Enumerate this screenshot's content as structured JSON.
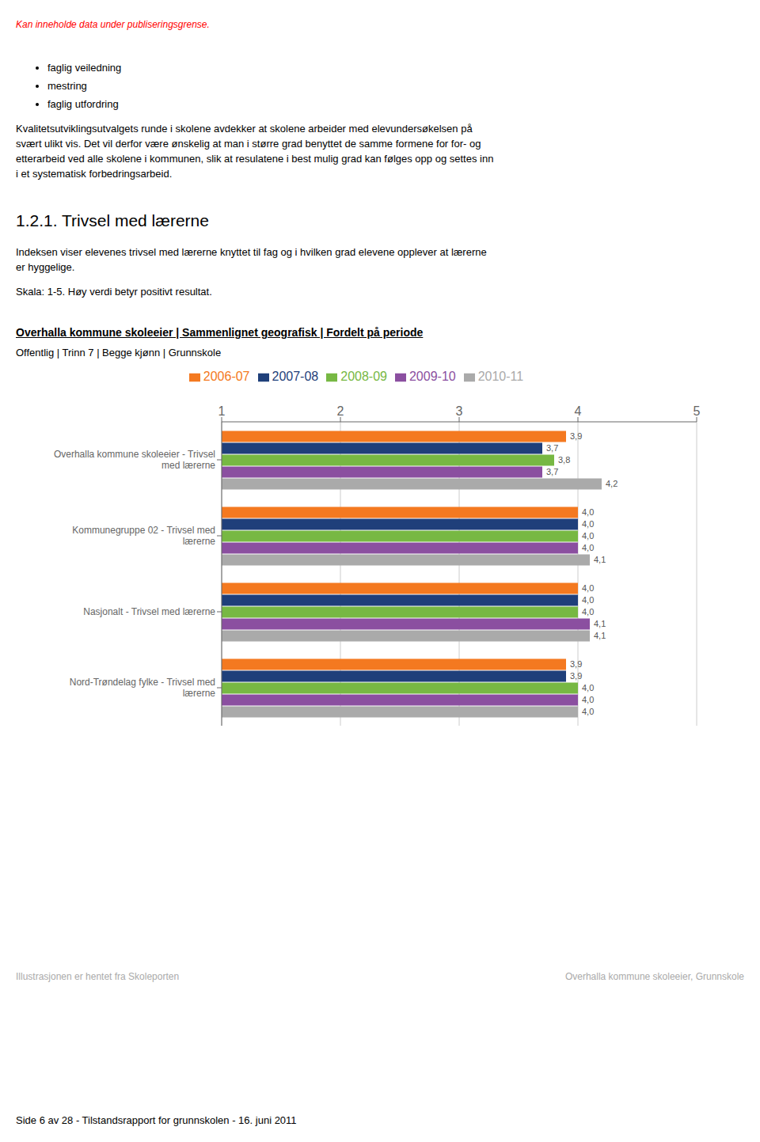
{
  "page_title_red": "Kan inneholde data under publiseringsgrense.",
  "bullet_items": [
    "faglig veiledning",
    "mestring",
    "faglig utfordring"
  ],
  "para1_lines": [
    "Kvalitetsutviklingsutvalgets runde i skolene avdekker at skolene arbeider med elevundersøkelsen på",
    "svært ulikt vis. Det vil derfor være ønskelig at man i større grad benyttet de samme formene for for- og",
    "etterarbeid ved alle skolene i kommunen, slik at resulatene i best mulig grad kan følges opp og settes inn",
    "i et systematisk forbedringsarbeid."
  ],
  "section_heading": "1.2.1.  Trivsel med lærerne",
  "sec_desc_lines": [
    "Indeksen viser elevenes trivsel med lærerne knyttet til fag og i hvilken grad elevene opplever at lærerne",
    "er hyggelige."
  ],
  "scale_text": "Skala: 1-5. Høy verdi betyr positivt resultat.",
  "chart_data": {
    "type": "bar",
    "orientation": "horizontal",
    "title": "Overhalla kommune skoleeier | Sammenlignet geografisk | Fordelt på periode",
    "subtitle": "Offentlig | Trinn 7 | Begge kjønn | Grunnskole",
    "categories": [
      "Overhalla kommune skoleeier - Trivsel\nmed lærerne",
      "Kommunegruppe 02 - Trivsel med\nlærerne",
      "Nasjonalt - Trivsel med lærerne",
      "Nord-Trøndelag fylke - Trivsel med\nlærerne"
    ],
    "series": [
      {
        "name": "2006-07",
        "color": "#f47920",
        "values": [
          3.9,
          4.0,
          4.0,
          3.9
        ],
        "value_labels": [
          "3,9",
          "4,0",
          "4,0",
          "3,9"
        ]
      },
      {
        "name": "2007-08",
        "color": "#1f3f7a",
        "values": [
          3.7,
          4.0,
          4.0,
          3.9
        ],
        "value_labels": [
          "3,7",
          "4,0",
          "4,0",
          "3,9"
        ]
      },
      {
        "name": "2008-09",
        "color": "#77b843",
        "values": [
          3.8,
          4.0,
          4.0,
          4.0
        ],
        "value_labels": [
          "3,8",
          "4,0",
          "4,0",
          "4,0"
        ]
      },
      {
        "name": "2009-10",
        "color": "#8b4fa0",
        "values": [
          3.7,
          4.0,
          4.1,
          4.0
        ],
        "value_labels": [
          "3,7",
          "4,0",
          "4,1",
          "4,0"
        ]
      },
      {
        "name": "2010-11",
        "color": "#aaaaaa",
        "values": [
          4.2,
          4.1,
          4.1,
          4.0
        ],
        "value_labels": [
          "4,2",
          "4,1",
          "4,1",
          "4,0"
        ]
      }
    ],
    "xlim": [
      1,
      5
    ],
    "xticks": [
      1,
      2,
      3,
      4,
      5
    ],
    "grid": true,
    "data_labels": true,
    "legend": "top"
  },
  "footer_left": "Illustrasjonen er hentet fra Skoleporten",
  "footer_right": "Overhalla kommune skoleeier, Grunnskole",
  "page_footer": "Side 6 av 28 - Tilstandsrapport for grunnskolen - 16. juni 2011"
}
